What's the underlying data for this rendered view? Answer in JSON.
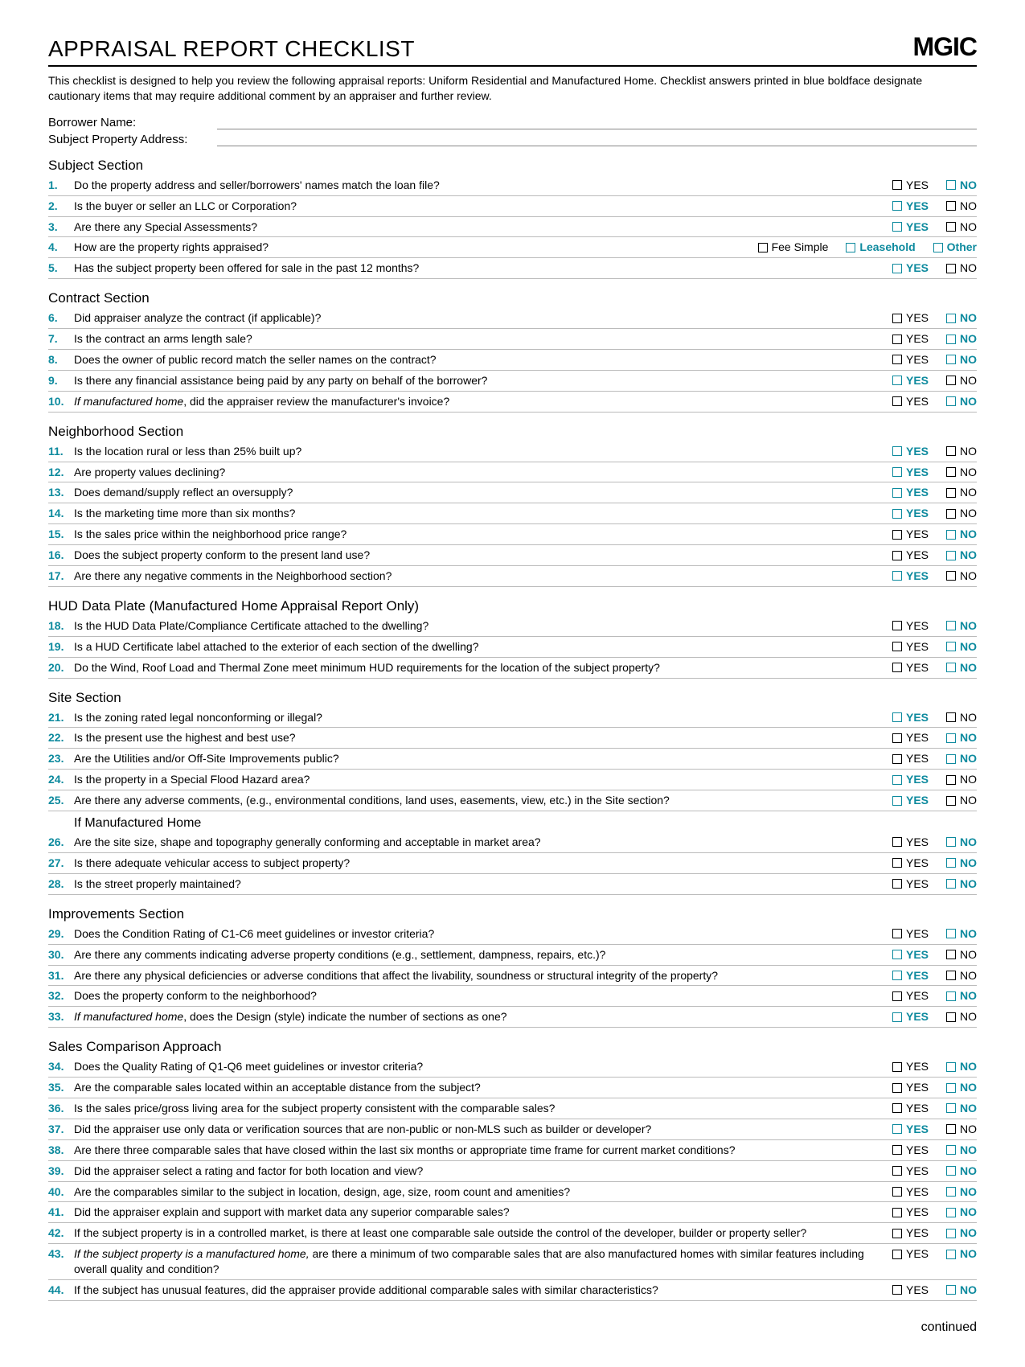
{
  "colors": {
    "teal": "#0d8a9e",
    "rule": "#bbbbbb"
  },
  "header": {
    "title": "APPRAISAL REPORT CHECKLIST",
    "logo": "MGIC",
    "intro": "This checklist is designed to help you review the following appraisal reports: Uniform Residential and Manufactured Home. Checklist answers printed in blue boldface designate cautionary items that may require additional comment by an appraiser and further review."
  },
  "fields": {
    "borrower_label": "Borrower Name:",
    "address_label": "Subject Property Address:"
  },
  "footer": {
    "continued": "continued"
  },
  "sections": [
    {
      "title": "Subject Section",
      "items": [
        {
          "n": "1.",
          "q": "Do the property address and seller/borrowers' names match the loan file?",
          "ans": [
            [
              "YES",
              false
            ],
            [
              "NO",
              true
            ]
          ]
        },
        {
          "n": "2.",
          "q": "Is the buyer or seller an LLC or Corporation?",
          "ans": [
            [
              "YES",
              true
            ],
            [
              "NO",
              false
            ]
          ]
        },
        {
          "n": "3.",
          "q": "Are there any Special Assessments?",
          "ans": [
            [
              "YES",
              true
            ],
            [
              "NO",
              false
            ]
          ]
        },
        {
          "n": "4.",
          "q": "How are the property rights appraised?",
          "ans": [
            [
              "Fee Simple",
              false
            ],
            [
              "Leasehold",
              true
            ],
            [
              "Other",
              true
            ]
          ]
        },
        {
          "n": "5.",
          "q": "Has the subject property been offered for sale in the past 12 months?",
          "ans": [
            [
              "YES",
              true
            ],
            [
              "NO",
              false
            ]
          ]
        }
      ]
    },
    {
      "title": "Contract Section",
      "items": [
        {
          "n": "6.",
          "q": "Did appraiser analyze the contract (if applicable)?",
          "ans": [
            [
              "YES",
              false
            ],
            [
              "NO",
              true
            ]
          ]
        },
        {
          "n": "7.",
          "q": "Is the contract an arms length sale?",
          "ans": [
            [
              "YES",
              false
            ],
            [
              "NO",
              true
            ]
          ]
        },
        {
          "n": "8.",
          "q": "Does the owner of public record match the seller names on the contract?",
          "ans": [
            [
              "YES",
              false
            ],
            [
              "NO",
              true
            ]
          ]
        },
        {
          "n": "9.",
          "q": "Is there any financial assistance being paid by any party on behalf of the borrower?",
          "ans": [
            [
              "YES",
              true
            ],
            [
              "NO",
              false
            ]
          ]
        },
        {
          "n": "10.",
          "q": "<em>If manufactured home</em>, did the appraiser review the manufacturer's invoice?",
          "ans": [
            [
              "YES",
              false
            ],
            [
              "NO",
              true
            ]
          ]
        }
      ]
    },
    {
      "title": "Neighborhood Section",
      "items": [
        {
          "n": "11.",
          "q": "Is the location rural or less than 25% built up?",
          "ans": [
            [
              "YES",
              true
            ],
            [
              "NO",
              false
            ]
          ]
        },
        {
          "n": "12.",
          "q": "Are property values declining?",
          "ans": [
            [
              "YES",
              true
            ],
            [
              "NO",
              false
            ]
          ]
        },
        {
          "n": "13.",
          "q": "Does demand/supply reflect an oversupply?",
          "ans": [
            [
              "YES",
              true
            ],
            [
              "NO",
              false
            ]
          ]
        },
        {
          "n": "14.",
          "q": "Is the marketing time more than six months?",
          "ans": [
            [
              "YES",
              true
            ],
            [
              "NO",
              false
            ]
          ]
        },
        {
          "n": "15.",
          "q": "Is the sales price within the neighborhood price range?",
          "ans": [
            [
              "YES",
              false
            ],
            [
              "NO",
              true
            ]
          ]
        },
        {
          "n": "16.",
          "q": "Does the subject property conform to the present land use?",
          "ans": [
            [
              "YES",
              false
            ],
            [
              "NO",
              true
            ]
          ]
        },
        {
          "n": "17.",
          "q": "Are there any negative comments in the Neighborhood section?",
          "ans": [
            [
              "YES",
              true
            ],
            [
              "NO",
              false
            ]
          ]
        }
      ]
    },
    {
      "title": "HUD Data Plate (Manufactured Home Appraisal Report Only)",
      "items": [
        {
          "n": "18.",
          "q": "Is the HUD Data Plate/Compliance Certificate attached to the dwelling?",
          "ans": [
            [
              "YES",
              false
            ],
            [
              "NO",
              true
            ]
          ]
        },
        {
          "n": "19.",
          "q": "Is a HUD Certificate label attached to the exterior of each section of the dwelling?",
          "ans": [
            [
              "YES",
              false
            ],
            [
              "NO",
              true
            ]
          ]
        },
        {
          "n": "20.",
          "q": "Do the Wind, Roof Load and Thermal Zone meet minimum HUD requirements for the location of the subject property?",
          "ans": [
            [
              "YES",
              false
            ],
            [
              "NO",
              true
            ]
          ]
        }
      ]
    },
    {
      "title": "Site Section",
      "items": [
        {
          "n": "21.",
          "q": "Is the zoning rated legal nonconforming or illegal?",
          "ans": [
            [
              "YES",
              true
            ],
            [
              "NO",
              false
            ]
          ]
        },
        {
          "n": "22.",
          "q": "Is the present use the highest and best use?",
          "ans": [
            [
              "YES",
              false
            ],
            [
              "NO",
              true
            ]
          ]
        },
        {
          "n": "23.",
          "q": "Are the Utilities and/or Off-Site Improvements public?",
          "ans": [
            [
              "YES",
              false
            ],
            [
              "NO",
              true
            ]
          ]
        },
        {
          "n": "24.",
          "q": "Is the property in a Special Flood Hazard area?",
          "ans": [
            [
              "YES",
              true
            ],
            [
              "NO",
              false
            ]
          ]
        },
        {
          "n": "25.",
          "q": "Are there any adverse comments, (e.g., environmental conditions, land uses, easements, view, etc.) in the Site section?",
          "ans": [
            [
              "YES",
              true
            ],
            [
              "NO",
              false
            ]
          ]
        }
      ],
      "sub": {
        "title": "If Manufactured Home",
        "items": [
          {
            "n": "26.",
            "q": "Are the site size, shape and topography generally conforming and acceptable in market area?",
            "ans": [
              [
                "YES",
                false
              ],
              [
                "NO",
                true
              ]
            ]
          },
          {
            "n": "27.",
            "q": "Is there adequate vehicular access to subject property?",
            "ans": [
              [
                "YES",
                false
              ],
              [
                "NO",
                true
              ]
            ]
          },
          {
            "n": "28.",
            "q": "Is the street properly maintained?",
            "ans": [
              [
                "YES",
                false
              ],
              [
                "NO",
                true
              ]
            ]
          }
        ]
      }
    },
    {
      "title": "Improvements Section",
      "items": [
        {
          "n": "29.",
          "q": "Does the Condition Rating of C1-C6 meet guidelines or investor criteria?",
          "ans": [
            [
              "YES",
              false
            ],
            [
              "NO",
              true
            ]
          ]
        },
        {
          "n": "30.",
          "q": "Are there any comments indicating adverse property conditions (e.g., settlement, dampness, repairs, etc.)?",
          "ans": [
            [
              "YES",
              true
            ],
            [
              "NO",
              false
            ]
          ]
        },
        {
          "n": "31.",
          "q": "Are there any physical deficiencies or adverse conditions that affect the livability, soundness or structural integrity of the property?",
          "ans": [
            [
              "YES",
              true
            ],
            [
              "NO",
              false
            ]
          ]
        },
        {
          "n": "32.",
          "q": "Does the property conform to the neighborhood?",
          "ans": [
            [
              "YES",
              false
            ],
            [
              "NO",
              true
            ]
          ]
        },
        {
          "n": "33.",
          "q": "<em>If manufactured home</em>, does the Design (style) indicate the number of sections as one?",
          "ans": [
            [
              "YES",
              true
            ],
            [
              "NO",
              false
            ]
          ]
        }
      ]
    },
    {
      "title": "Sales Comparison Approach",
      "items": [
        {
          "n": "34.",
          "q": "Does the Quality Rating of Q1-Q6 meet guidelines or investor criteria?",
          "ans": [
            [
              "YES",
              false
            ],
            [
              "NO",
              true
            ]
          ]
        },
        {
          "n": "35.",
          "q": "Are the comparable sales located within an acceptable distance from the subject?",
          "ans": [
            [
              "YES",
              false
            ],
            [
              "NO",
              true
            ]
          ]
        },
        {
          "n": "36.",
          "q": "Is the sales price/gross living area for the subject property consistent with the comparable sales?",
          "ans": [
            [
              "YES",
              false
            ],
            [
              "NO",
              true
            ]
          ]
        },
        {
          "n": "37.",
          "q": "Did the appraiser use only data or verification sources that are non-public or non-MLS such as builder or developer?",
          "ans": [
            [
              "YES",
              true
            ],
            [
              "NO",
              false
            ]
          ]
        },
        {
          "n": "38.",
          "q": "Are there three comparable sales that have closed within the last six months or appropriate time frame for current market conditions?",
          "ans": [
            [
              "YES",
              false
            ],
            [
              "NO",
              true
            ]
          ]
        },
        {
          "n": "39.",
          "q": "Did the appraiser select a rating and factor for both location and view?",
          "ans": [
            [
              "YES",
              false
            ],
            [
              "NO",
              true
            ]
          ]
        },
        {
          "n": "40.",
          "q": "Are the comparables similar to the subject in location, design, age, size, room count and amenities?",
          "ans": [
            [
              "YES",
              false
            ],
            [
              "NO",
              true
            ]
          ]
        },
        {
          "n": "41.",
          "q": "Did the appraiser explain and support with market data any superior comparable sales?",
          "ans": [
            [
              "YES",
              false
            ],
            [
              "NO",
              true
            ]
          ]
        },
        {
          "n": "42.",
          "q": "If the subject property is in a controlled market, is there at least one comparable sale outside the control of the developer, builder or property seller?",
          "ans": [
            [
              "YES",
              false
            ],
            [
              "NO",
              true
            ]
          ]
        },
        {
          "n": "43.",
          "q": "<em>If the subject property is a manufactured home,</em> are there a minimum of two comparable sales that are also manufactured homes with similar features including overall quality and condition?",
          "ans": [
            [
              "YES",
              false
            ],
            [
              "NO",
              true
            ]
          ]
        },
        {
          "n": "44.",
          "q": "If the subject has unusual features, did the appraiser provide additional comparable sales with similar characteristics?",
          "ans": [
            [
              "YES",
              false
            ],
            [
              "NO",
              true
            ]
          ]
        }
      ]
    }
  ]
}
